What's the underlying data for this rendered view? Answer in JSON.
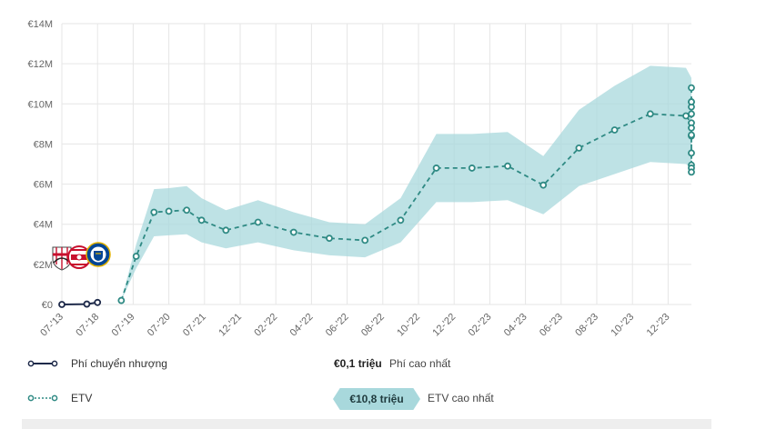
{
  "chart_data": {
    "type": "line",
    "y_ticks": [
      "€0",
      "€2M",
      "€4M",
      "€6M",
      "€8M",
      "€10M",
      "€12M",
      "€14M"
    ],
    "ylim": [
      0,
      14
    ],
    "x_ticks": [
      "07-'13",
      "07-'18",
      "07-'19",
      "07-'20",
      "07-'21",
      "12-'21",
      "02-'22",
      "04-'22",
      "06-'22",
      "08-'22",
      "10-'22",
      "12-'22",
      "02-'23",
      "04-'23",
      "06-'23",
      "08-'23",
      "10-'23",
      "12-'23"
    ],
    "grid": true,
    "series": [
      {
        "name": "Phí chuyển nhượng",
        "points": [
          {
            "x": "2013-07",
            "y": 0.0
          },
          {
            "x": "2017-01",
            "y": 0.02
          },
          {
            "x": "2018-07",
            "y": 0.1
          }
        ]
      },
      {
        "name": "ETV",
        "points": [
          {
            "x": "2019-03",
            "y": 0.2
          },
          {
            "x": "2019-08",
            "y": 2.4
          },
          {
            "x": "2020-02",
            "y": 4.6
          },
          {
            "x": "2020-07",
            "y": 4.65
          },
          {
            "x": "2021-01",
            "y": 4.7
          },
          {
            "x": "2021-06",
            "y": 4.2
          },
          {
            "x": "2021-10",
            "y": 3.7
          },
          {
            "x": "2022-01",
            "y": 4.1
          },
          {
            "x": "2022-03",
            "y": 3.6
          },
          {
            "x": "2022-05",
            "y": 3.3
          },
          {
            "x": "2022-07",
            "y": 3.2
          },
          {
            "x": "2022-09",
            "y": 4.2
          },
          {
            "x": "2022-11",
            "y": 6.8
          },
          {
            "x": "2023-01",
            "y": 6.8
          },
          {
            "x": "2023-03",
            "y": 6.9
          },
          {
            "x": "2023-05",
            "y": 5.95
          },
          {
            "x": "2023-07",
            "y": 7.8
          },
          {
            "x": "2023-09",
            "y": 8.7
          },
          {
            "x": "2023-11",
            "y": 9.5
          },
          {
            "x": "2024-01",
            "y": 9.4
          },
          {
            "x": "2024-03",
            "y": 9.05
          },
          {
            "x": "2024-05",
            "y": 8.8
          },
          {
            "x": "2024-07",
            "y": 8.4
          },
          {
            "x": "2024-09",
            "y": 10.1
          },
          {
            "x": "2024-11",
            "y": 9.85
          },
          {
            "x": "2025-01",
            "y": 8.45
          },
          {
            "x": "2025-03",
            "y": 7.55
          },
          {
            "x": "2025-05",
            "y": 6.95
          },
          {
            "x": "2025-07",
            "y": 6.8
          },
          {
            "x": "2025-09",
            "y": 6.6
          },
          {
            "x": "2025-11",
            "y": 10.1
          },
          {
            "x": "2026-01",
            "y": 9.5
          },
          {
            "x": "2026-03",
            "y": 10.8
          }
        ],
        "range_low": [
          0.2,
          1.8,
          3.4,
          3.45,
          3.5,
          3.1,
          2.8,
          3.1,
          2.7,
          2.45,
          2.35,
          3.1,
          5.1,
          5.1,
          5.2,
          4.5,
          5.9,
          6.5,
          7.1,
          7.0,
          6.8,
          6.6,
          6.3,
          7.6,
          7.4,
          6.4,
          5.7,
          5.2,
          5.1,
          4.95,
          7.6,
          7.1,
          8.1
        ],
        "range_high": [
          0.2,
          3.0,
          5.75,
          5.8,
          5.9,
          5.3,
          4.7,
          5.2,
          4.6,
          4.1,
          4.0,
          5.3,
          8.5,
          8.5,
          8.6,
          7.4,
          9.7,
          10.9,
          11.9,
          11.8,
          11.3,
          11.0,
          10.5,
          12.6,
          12.3,
          10.6,
          9.5,
          8.7,
          8.5,
          8.2,
          12.6,
          11.9,
          13.5
        ]
      }
    ],
    "club_icons": [
      "club-crest-1",
      "club-crest-2",
      "club-crest-3"
    ],
    "colors": {
      "etv_line": "#2f8a84",
      "etv_band": "#a8d8dc",
      "fee_line": "#1e2a4a",
      "grid": "#e6e6e6"
    }
  },
  "legend": {
    "fee_label": "Phí chuyển nhượng",
    "fee_max_value": "€0,1 triệu",
    "fee_max_label": "Phí cao nhất",
    "etv_label": "ETV",
    "etv_max_value": "€10,8 triệu",
    "etv_max_label": "ETV cao nhất"
  }
}
